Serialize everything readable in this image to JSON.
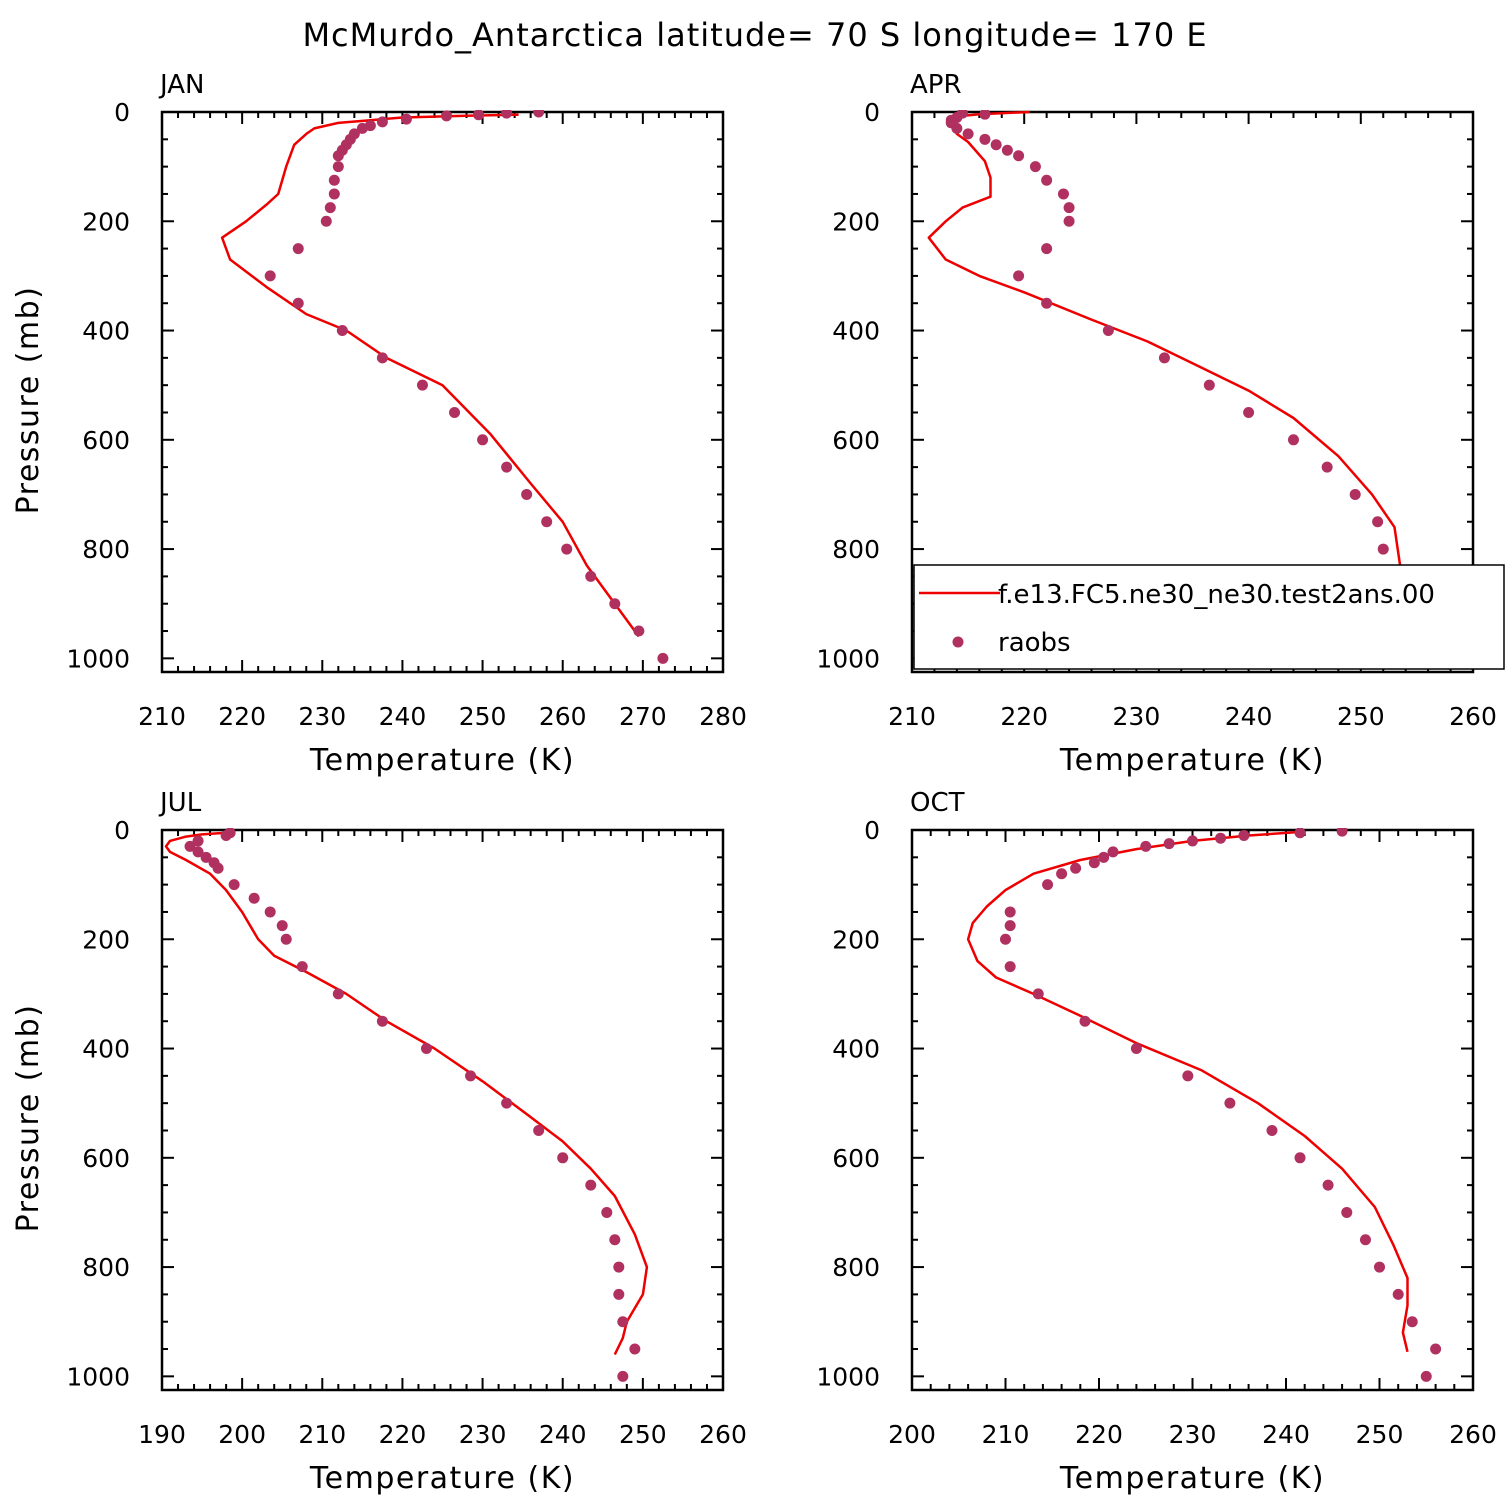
{
  "figure": {
    "title": "McMurdo_Antarctica  latitude= 70 S longitude= 170 E"
  },
  "colors": {
    "model_line": "#ee0000",
    "obs_dots": "#b03060",
    "axis": "#000000",
    "background": "#ffffff"
  },
  "chart_data": [
    {
      "type": "line",
      "panel": "JAN",
      "title": "JAN",
      "xlabel": "Temperature (K)",
      "ylabel": "Pressure (mb)",
      "xlim": [
        210,
        280
      ],
      "ylim": [
        1025,
        0
      ],
      "y_reversed": true,
      "xticks": [
        210,
        220,
        230,
        240,
        250,
        260,
        270,
        280
      ],
      "yticks": [
        0,
        200,
        400,
        600,
        800,
        1000
      ],
      "series": [
        {
          "name": "f.e13.FC5.ne30_ne30.test2ans.00",
          "style": "line",
          "points": [
            [
              254.5,
              5
            ],
            [
              248,
              7
            ],
            [
              240,
              10
            ],
            [
              236,
              15
            ],
            [
              232,
              20
            ],
            [
              229,
              30
            ],
            [
              228,
              40
            ],
            [
              226.5,
              60
            ],
            [
              225.5,
              100
            ],
            [
              224.5,
              150
            ],
            [
              223,
              170
            ],
            [
              220.5,
              200
            ],
            [
              217.5,
              230
            ],
            [
              218.5,
              270
            ],
            [
              223,
              320
            ],
            [
              228,
              370
            ],
            [
              233,
              400
            ],
            [
              238,
              450
            ],
            [
              245,
              500
            ],
            [
              251,
              590
            ],
            [
              256,
              680
            ],
            [
              260,
              750
            ],
            [
              263,
              830
            ],
            [
              266.5,
              900
            ],
            [
              269.5,
              960
            ]
          ]
        },
        {
          "name": "raobs",
          "style": "points",
          "points": [
            [
              257,
              0
            ],
            [
              253,
              2
            ],
            [
              249.5,
              5
            ],
            [
              245.5,
              7
            ],
            [
              240.5,
              13
            ],
            [
              237.5,
              18
            ],
            [
              236,
              25
            ],
            [
              235,
              30
            ],
            [
              234,
              40
            ],
            [
              233.5,
              50
            ],
            [
              233,
              60
            ],
            [
              232.5,
              70
            ],
            [
              232,
              80
            ],
            [
              232,
              100
            ],
            [
              231.5,
              125
            ],
            [
              231.5,
              150
            ],
            [
              231,
              175
            ],
            [
              230.5,
              200
            ],
            [
              227,
              250
            ],
            [
              223.5,
              300
            ],
            [
              227,
              350
            ],
            [
              232.5,
              400
            ],
            [
              237.5,
              450
            ],
            [
              242.5,
              500
            ],
            [
              246.5,
              550
            ],
            [
              250,
              600
            ],
            [
              253,
              650
            ],
            [
              255.5,
              700
            ],
            [
              258,
              750
            ],
            [
              260.5,
              800
            ],
            [
              263.5,
              850
            ],
            [
              266.5,
              900
            ],
            [
              269.5,
              950
            ],
            [
              272.5,
              1000
            ]
          ]
        }
      ]
    },
    {
      "type": "line",
      "panel": "APR",
      "title": "APR",
      "xlabel": "Temperature (K)",
      "ylabel": "",
      "xlim": [
        210,
        260
      ],
      "ylim": [
        1025,
        0
      ],
      "y_reversed": true,
      "xticks": [
        210,
        220,
        230,
        240,
        250,
        260
      ],
      "yticks": [
        0,
        200,
        400,
        600,
        800,
        1000
      ],
      "legend": {
        "placement": "lower-right",
        "entries": [
          "f.e13.FC5.ne30_ne30.test2ans.00",
          "raobs"
        ]
      },
      "series": [
        {
          "name": "f.e13.FC5.ne30_ne30.test2ans.00",
          "style": "line",
          "points": [
            [
              220.5,
              0
            ],
            [
              216,
              4
            ],
            [
              214,
              8
            ],
            [
              213.5,
              15
            ],
            [
              213.5,
              25
            ],
            [
              214,
              40
            ],
            [
              215,
              55
            ],
            [
              216.5,
              90
            ],
            [
              217,
              120
            ],
            [
              217,
              155
            ],
            [
              214.5,
              175
            ],
            [
              213,
              200
            ],
            [
              211.5,
              230
            ],
            [
              213,
              270
            ],
            [
              216,
              300
            ],
            [
              220,
              330
            ],
            [
              226,
              380
            ],
            [
              231,
              420
            ],
            [
              235,
              460
            ],
            [
              240,
              510
            ],
            [
              244,
              560
            ],
            [
              248,
              630
            ],
            [
              251,
              700
            ],
            [
              253,
              760
            ],
            [
              253.5,
              830
            ],
            [
              252.5,
              880
            ],
            [
              252.5,
              910
            ],
            [
              253,
              935
            ],
            [
              254.5,
              960
            ]
          ]
        },
        {
          "name": "raobs",
          "style": "points",
          "points": [
            [
              214.5,
              2
            ],
            [
              216.5,
              4
            ],
            [
              214,
              10
            ],
            [
              213.5,
              15
            ],
            [
              213.5,
              20
            ],
            [
              214,
              30
            ],
            [
              215,
              40
            ],
            [
              216.5,
              50
            ],
            [
              217.5,
              60
            ],
            [
              218.5,
              70
            ],
            [
              219.5,
              80
            ],
            [
              221,
              100
            ],
            [
              222,
              125
            ],
            [
              223.5,
              150
            ],
            [
              224,
              175
            ],
            [
              224,
              200
            ],
            [
              222,
              250
            ],
            [
              219.5,
              300
            ],
            [
              222,
              350
            ],
            [
              227.5,
              400
            ],
            [
              232.5,
              450
            ],
            [
              236.5,
              500
            ],
            [
              240,
              550
            ],
            [
              244,
              600
            ],
            [
              247,
              650
            ],
            [
              249.5,
              700
            ],
            [
              251.5,
              750
            ],
            [
              252,
              800
            ],
            [
              252,
              850
            ],
            [
              254,
              900
            ],
            [
              256,
              950
            ],
            [
              256.5,
              1000
            ]
          ]
        }
      ]
    },
    {
      "type": "line",
      "panel": "JUL",
      "title": "JUL",
      "xlabel": "Temperature (K)",
      "ylabel": "Pressure (mb)",
      "xlim": [
        190,
        260
      ],
      "ylim": [
        1025,
        0
      ],
      "y_reversed": true,
      "xticks": [
        190,
        200,
        210,
        220,
        230,
        240,
        250,
        260
      ],
      "yticks": [
        0,
        200,
        400,
        600,
        800,
        1000
      ],
      "series": [
        {
          "name": "f.e13.FC5.ne30_ne30.test2ans.00",
          "style": "line",
          "points": [
            [
              198,
              5
            ],
            [
              195,
              8
            ],
            [
              193,
              12
            ],
            [
              191,
              20
            ],
            [
              190.5,
              30
            ],
            [
              191,
              40
            ],
            [
              193,
              55
            ],
            [
              196,
              80
            ],
            [
              198,
              110
            ],
            [
              200,
              150
            ],
            [
              202,
              200
            ],
            [
              204,
              230
            ],
            [
              208,
              260
            ],
            [
              213,
              300
            ],
            [
              218,
              350
            ],
            [
              224,
              400
            ],
            [
              230,
              460
            ],
            [
              235.5,
              520
            ],
            [
              240,
              570
            ],
            [
              243.5,
              620
            ],
            [
              246.5,
              670
            ],
            [
              249,
              740
            ],
            [
              250.5,
              800
            ],
            [
              250,
              850
            ],
            [
              248,
              900
            ],
            [
              247.5,
              930
            ],
            [
              246.5,
              960
            ]
          ]
        },
        {
          "name": "raobs",
          "style": "points",
          "points": [
            [
              198.5,
              5
            ],
            [
              198,
              10
            ],
            [
              194.5,
              20
            ],
            [
              193.5,
              30
            ],
            [
              194.5,
              40
            ],
            [
              195.5,
              50
            ],
            [
              196.5,
              60
            ],
            [
              197,
              70
            ],
            [
              199,
              100
            ],
            [
              201.5,
              125
            ],
            [
              203.5,
              150
            ],
            [
              205,
              175
            ],
            [
              205.5,
              200
            ],
            [
              207.5,
              250
            ],
            [
              212,
              300
            ],
            [
              217.5,
              350
            ],
            [
              223,
              400
            ],
            [
              228.5,
              450
            ],
            [
              233,
              500
            ],
            [
              237,
              550
            ],
            [
              240,
              600
            ],
            [
              243.5,
              650
            ],
            [
              245.5,
              700
            ],
            [
              246.5,
              750
            ],
            [
              247,
              800
            ],
            [
              247,
              850
            ],
            [
              247.5,
              900
            ],
            [
              249,
              950
            ],
            [
              247.5,
              1000
            ]
          ]
        }
      ]
    },
    {
      "type": "line",
      "panel": "OCT",
      "title": "OCT",
      "xlabel": "Temperature (K)",
      "ylabel": "",
      "xlim": [
        200,
        260
      ],
      "ylim": [
        1025,
        0
      ],
      "y_reversed": true,
      "xticks": [
        200,
        210,
        220,
        230,
        240,
        250,
        260
      ],
      "yticks": [
        0,
        200,
        400,
        600,
        800,
        1000
      ],
      "series": [
        {
          "name": "f.e13.FC5.ne30_ne30.test2ans.00",
          "style": "line",
          "points": [
            [
              242,
              3
            ],
            [
              236,
              10
            ],
            [
              230,
              20
            ],
            [
              224,
              35
            ],
            [
              218,
              55
            ],
            [
              213,
              80
            ],
            [
              210,
              110
            ],
            [
              208,
              140
            ],
            [
              206.5,
              170
            ],
            [
              206,
              200
            ],
            [
              207,
              240
            ],
            [
              209,
              270
            ],
            [
              213,
              300
            ],
            [
              218,
              340
            ],
            [
              224,
              390
            ],
            [
              231,
              440
            ],
            [
              237,
              500
            ],
            [
              242,
              560
            ],
            [
              246,
              620
            ],
            [
              249.5,
              690
            ],
            [
              251.5,
              760
            ],
            [
              253,
              820
            ],
            [
              253,
              870
            ],
            [
              252.5,
              920
            ],
            [
              253,
              955
            ]
          ]
        },
        {
          "name": "raobs",
          "style": "points",
          "points": [
            [
              246,
              2
            ],
            [
              241.5,
              5
            ],
            [
              235.5,
              10
            ],
            [
              233,
              15
            ],
            [
              230,
              20
            ],
            [
              227.5,
              25
            ],
            [
              225,
              30
            ],
            [
              221.5,
              40
            ],
            [
              220.5,
              50
            ],
            [
              219.5,
              60
            ],
            [
              217.5,
              70
            ],
            [
              216,
              80
            ],
            [
              214.5,
              100
            ],
            [
              210.5,
              150
            ],
            [
              210.5,
              175
            ],
            [
              210,
              200
            ],
            [
              210.5,
              250
            ],
            [
              213.5,
              300
            ],
            [
              218.5,
              350
            ],
            [
              224,
              400
            ],
            [
              229.5,
              450
            ],
            [
              234,
              500
            ],
            [
              238.5,
              550
            ],
            [
              241.5,
              600
            ],
            [
              244.5,
              650
            ],
            [
              246.5,
              700
            ],
            [
              248.5,
              750
            ],
            [
              250,
              800
            ],
            [
              252,
              850
            ],
            [
              253.5,
              900
            ],
            [
              256,
              950
            ],
            [
              255,
              1000
            ]
          ]
        }
      ]
    }
  ]
}
